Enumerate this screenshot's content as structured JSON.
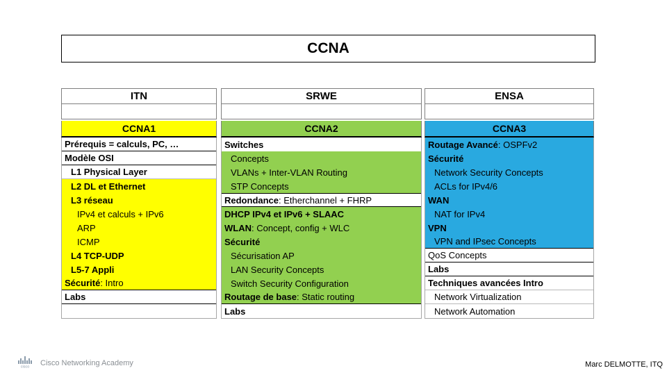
{
  "title": "CCNA",
  "footer": {
    "brand": "Cisco Networking Academy",
    "logo_text": "cisco",
    "author": "Marc DELMOTTE, ITQ"
  },
  "colors": {
    "yellow": "#FFFF00",
    "green": "#92D050",
    "blue": "#29A9E0",
    "white": "#FFFFFF",
    "grid_gray": "#b9b9b9",
    "grid_black": "#000000"
  },
  "columns": [
    {
      "header": "ITN",
      "badge": "CCNA1",
      "badge_color": "yellow",
      "rows": [
        {
          "segments": [
            {
              "text": "Prérequis = calculs, PC, …",
              "bold": true
            }
          ],
          "bg": "white",
          "indent": 0,
          "border_bottom": "black"
        },
        {
          "segments": [
            {
              "text": "Modèle OSI",
              "bold": true
            }
          ],
          "bg": "white",
          "indent": 0,
          "border_bottom": "black"
        },
        {
          "segments": [
            {
              "text": "L1 Physical Layer",
              "bold": true
            }
          ],
          "bg": "white",
          "indent": 1,
          "border_bottom": "gray"
        },
        {
          "segments": [
            {
              "text": "L2 DL et Ethernet",
              "bold": true
            }
          ],
          "bg": "yellow",
          "indent": 1,
          "border_bottom": "none"
        },
        {
          "segments": [
            {
              "text": "L3 réseau",
              "bold": true
            }
          ],
          "bg": "yellow",
          "indent": 1,
          "border_bottom": "none"
        },
        {
          "segments": [
            {
              "text": "IPv4 et calculs + IPv6",
              "bold": false
            }
          ],
          "bg": "yellow",
          "indent": 2,
          "border_bottom": "none"
        },
        {
          "segments": [
            {
              "text": "ARP",
              "bold": false
            }
          ],
          "bg": "yellow",
          "indent": 2,
          "border_bottom": "none"
        },
        {
          "segments": [
            {
              "text": "ICMP",
              "bold": false
            }
          ],
          "bg": "yellow",
          "indent": 2,
          "border_bottom": "none"
        },
        {
          "segments": [
            {
              "text": "L4 TCP-UDP",
              "bold": true
            }
          ],
          "bg": "yellow",
          "indent": 1,
          "border_bottom": "none"
        },
        {
          "segments": [
            {
              "text": "L5-7 Appli",
              "bold": true
            }
          ],
          "bg": "yellow",
          "indent": 1,
          "border_bottom": "none"
        },
        {
          "segments": [
            {
              "text": "Sécurité",
              "bold": true
            },
            {
              "text": " : Intro",
              "bold": false
            }
          ],
          "bg": "yellow",
          "indent": 0,
          "border_bottom": "black"
        },
        {
          "segments": [
            {
              "text": "Labs",
              "bold": true
            }
          ],
          "bg": "white",
          "indent": 0,
          "border_bottom": "black"
        },
        {
          "segments": [],
          "bg": "white",
          "indent": 0,
          "border_bottom": "none"
        }
      ]
    },
    {
      "header": "SRWE",
      "badge": "CCNA2",
      "badge_color": "green",
      "rows": [
        {
          "segments": [
            {
              "text": "Switches",
              "bold": true
            }
          ],
          "bg": "white",
          "indent": 0,
          "border_bottom": "none"
        },
        {
          "segments": [
            {
              "text": "Concepts",
              "bold": false
            }
          ],
          "bg": "green",
          "indent": 1,
          "border_bottom": "none"
        },
        {
          "segments": [
            {
              "text": "VLANs + Inter-VLAN Routing",
              "bold": false
            }
          ],
          "bg": "green",
          "indent": 1,
          "border_bottom": "none"
        },
        {
          "segments": [
            {
              "text": "STP Concepts",
              "bold": false
            }
          ],
          "bg": "green",
          "indent": 1,
          "border_bottom": "none"
        },
        {
          "segments": [
            {
              "text": "Redondance",
              "bold": true
            },
            {
              "text": " : Etherchannel + FHRP",
              "bold": false
            }
          ],
          "bg": "white",
          "indent": 0,
          "border_top": "black",
          "border_bottom": "black"
        },
        {
          "segments": [
            {
              "text": "DHCP IPv4 et IPv6 + SLAAC",
              "bold": true
            }
          ],
          "bg": "green",
          "indent": 0,
          "border_bottom": "none"
        },
        {
          "segments": [
            {
              "text": "WLAN",
              "bold": true
            },
            {
              "text": " : Concept, config + WLC",
              "bold": false
            }
          ],
          "bg": "green",
          "indent": 0,
          "border_bottom": "none"
        },
        {
          "segments": [
            {
              "text": "Sécurité",
              "bold": true
            }
          ],
          "bg": "green",
          "indent": 0,
          "border_bottom": "none"
        },
        {
          "segments": [
            {
              "text": "Sécurisation AP",
              "bold": false
            }
          ],
          "bg": "green",
          "indent": 1,
          "border_bottom": "none"
        },
        {
          "segments": [
            {
              "text": "LAN Security Concepts",
              "bold": false
            }
          ],
          "bg": "green",
          "indent": 1,
          "border_bottom": "none"
        },
        {
          "segments": [
            {
              "text": "Switch Security Configuration",
              "bold": false
            }
          ],
          "bg": "green",
          "indent": 1,
          "border_bottom": "none"
        },
        {
          "segments": [
            {
              "text": "Routage de base",
              "bold": true
            },
            {
              "text": " : Static routing",
              "bold": false
            }
          ],
          "bg": "green",
          "indent": 0,
          "border_bottom": "black"
        },
        {
          "segments": [
            {
              "text": "Labs",
              "bold": true
            }
          ],
          "bg": "white",
          "indent": 0,
          "border_bottom": "none"
        }
      ]
    },
    {
      "header": "ENSA",
      "badge": "CCNA3",
      "badge_color": "blue",
      "rows": [
        {
          "segments": [
            {
              "text": "Routage Avancé",
              "bold": true
            },
            {
              "text": " : OSPFv2",
              "bold": false
            }
          ],
          "bg": "blue",
          "indent": 0,
          "border_bottom": "none"
        },
        {
          "segments": [
            {
              "text": "Sécurité",
              "bold": true
            }
          ],
          "bg": "blue",
          "indent": 0,
          "border_bottom": "none"
        },
        {
          "segments": [
            {
              "text": "Network Security Concepts",
              "bold": false
            }
          ],
          "bg": "blue",
          "indent": 1,
          "border_bottom": "none"
        },
        {
          "segments": [
            {
              "text": "ACLs for IPv4/6",
              "bold": false
            }
          ],
          "bg": "blue",
          "indent": 1,
          "border_bottom": "none"
        },
        {
          "segments": [
            {
              "text": "WAN",
              "bold": true
            }
          ],
          "bg": "blue",
          "indent": 0,
          "border_bottom": "none"
        },
        {
          "segments": [
            {
              "text": "NAT for IPv4",
              "bold": false
            }
          ],
          "bg": "blue",
          "indent": 1,
          "border_bottom": "none"
        },
        {
          "segments": [
            {
              "text": "VPN",
              "bold": true
            }
          ],
          "bg": "blue",
          "indent": 0,
          "border_bottom": "none"
        },
        {
          "segments": [
            {
              "text": "VPN and IPsec Concepts",
              "bold": false
            }
          ],
          "bg": "blue",
          "indent": 1,
          "border_bottom": "black"
        },
        {
          "segments": [
            {
              "text": "QoS Concepts",
              "bold": false
            }
          ],
          "bg": "white",
          "indent": 0,
          "border_bottom": "black"
        },
        {
          "segments": [
            {
              "text": "Labs",
              "bold": true
            }
          ],
          "bg": "white",
          "indent": 0,
          "border_bottom": "black"
        },
        {
          "segments": [
            {
              "text": "Techniques avancées Intro",
              "bold": true
            }
          ],
          "bg": "white",
          "indent": 0,
          "border_bottom": "gray"
        },
        {
          "segments": [
            {
              "text": "Network Virtualization",
              "bold": false
            }
          ],
          "bg": "white",
          "indent": 1,
          "border_bottom": "gray"
        },
        {
          "segments": [
            {
              "text": "Network Automation",
              "bold": false
            }
          ],
          "bg": "white",
          "indent": 1,
          "border_bottom": "none"
        }
      ]
    }
  ]
}
